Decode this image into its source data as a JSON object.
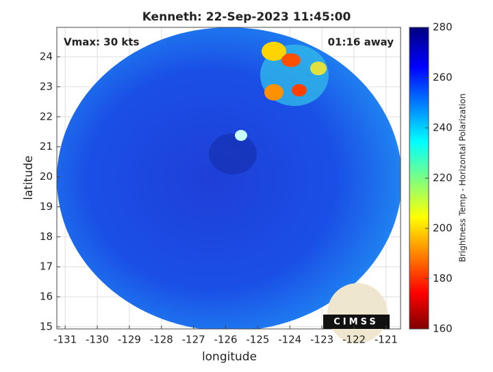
{
  "chart_data": {
    "type": "image",
    "title": "Kenneth: 22-Sep-2023 11:45:00",
    "annotations": [
      "Vmax: 30 kts",
      "01:16 away"
    ],
    "xlabel": "longitude",
    "ylabel": "latitude",
    "xlim": [
      -131.26,
      -120.55
    ],
    "xticks": [
      -131,
      -130,
      -129,
      -128,
      -127,
      -126,
      -125,
      -124,
      -123,
      -122,
      -121
    ],
    "ylim": [
      14.93,
      24.98
    ],
    "yticks": [
      15,
      16,
      17,
      18,
      19,
      20,
      21,
      22,
      23,
      24
    ],
    "grid": true,
    "colorbar": {
      "label": "Brightness Temp - Horizontal Polarization",
      "lim": [
        160,
        280
      ],
      "ticks": [
        160,
        180,
        200,
        220,
        240,
        260,
        280
      ]
    },
    "logo": "CIMSS"
  }
}
